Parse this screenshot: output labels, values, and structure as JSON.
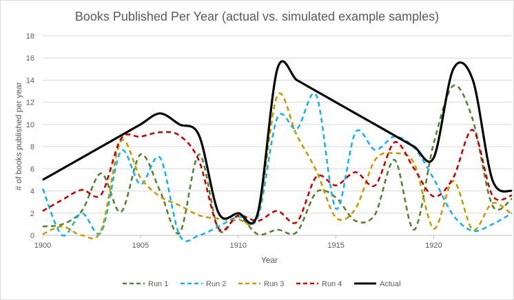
{
  "chart_data": {
    "type": "line",
    "title": "Books Published Per Year (actual vs. simulated example samples)",
    "xlabel": "Year",
    "ylabel": "# of books published per year",
    "xlim": [
      1900,
      1924
    ],
    "ylim": [
      0,
      18
    ],
    "xticks": [
      1900,
      1905,
      1910,
      1915,
      1920
    ],
    "yticks": [
      0,
      2,
      4,
      6,
      8,
      10,
      12,
      14,
      16,
      18
    ],
    "grid": "horizontal",
    "legend_position": "bottom",
    "x": [
      1900,
      1901,
      1902,
      1903,
      1904,
      1905,
      1906,
      1907,
      1908,
      1909,
      1910,
      1911,
      1912,
      1913,
      1914,
      1915,
      1916,
      1917,
      1918,
      1919,
      1920,
      1921,
      1922,
      1923,
      1924
    ],
    "series": [
      {
        "name": "Run 1",
        "color": "#548235",
        "dashed": true,
        "values": [
          0.8,
          1.0,
          2.2,
          5.6,
          2.1,
          7.3,
          4.0,
          0.2,
          7.3,
          0.5,
          1.7,
          0.1,
          0.5,
          0.3,
          3.9,
          3.4,
          1.3,
          1.9,
          6.8,
          0.5,
          8.3,
          13.5,
          10.4,
          2.7,
          3.3
        ]
      },
      {
        "name": "Run 2",
        "color": "#1ab0e8",
        "dashed": true,
        "values": [
          4.2,
          0.0,
          2.0,
          0.3,
          7.6,
          4.6,
          7.0,
          0.0,
          0.0,
          0.8,
          1.7,
          1.6,
          10.6,
          9.6,
          12.6,
          2.4,
          9.3,
          7.7,
          8.9,
          7.9,
          5.1,
          1.8,
          0.4,
          1.0,
          2.0
        ]
      },
      {
        "name": "Run 3",
        "color": "#c59a06",
        "dashed": true,
        "values": [
          0.1,
          0.8,
          0.0,
          0.5,
          8.5,
          5.2,
          3.5,
          2.7,
          1.8,
          1.5,
          1.4,
          1.9,
          12.6,
          9.0,
          5.8,
          1.6,
          2.4,
          6.8,
          7.4,
          6.5,
          0.6,
          4.9,
          0.5,
          2.9,
          1.9
        ]
      },
      {
        "name": "Run 4",
        "color": "#c00000",
        "dashed": true,
        "values": [
          2.2,
          3.2,
          4.1,
          3.7,
          8.7,
          8.9,
          9.3,
          9.0,
          6.7,
          0.6,
          1.8,
          1.3,
          2.2,
          1.2,
          5.3,
          4.5,
          5.7,
          4.5,
          8.4,
          6.0,
          3.5,
          5.2,
          9.5,
          3.6,
          3.6
        ]
      },
      {
        "name": "Actual",
        "color": "#000000",
        "dashed": false,
        "values": [
          5.0,
          6.0,
          7.0,
          8.0,
          9.0,
          10.0,
          11.0,
          10.0,
          9.0,
          2.0,
          2.0,
          2.0,
          15.0,
          14.0,
          13.0,
          12.0,
          11.0,
          10.0,
          9.0,
          8.0,
          7.0,
          15.0,
          14.0,
          5.0,
          4.0
        ]
      }
    ]
  }
}
